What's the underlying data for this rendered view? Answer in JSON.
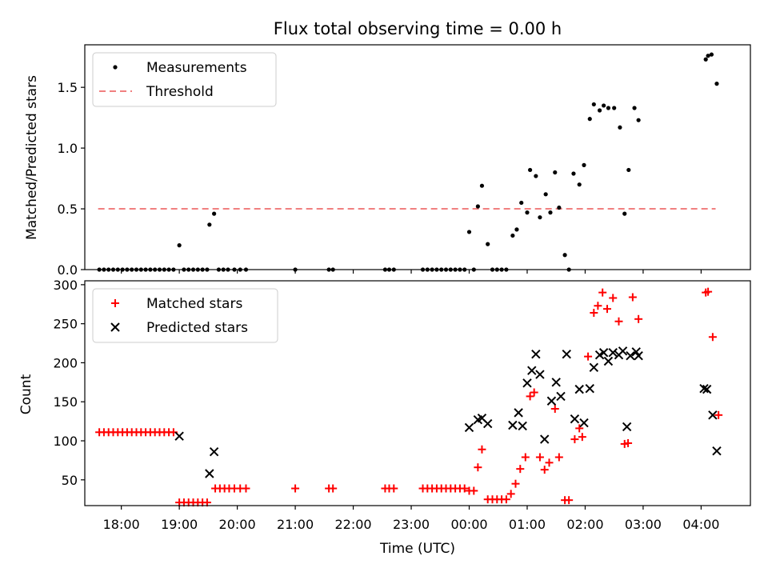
{
  "chart_data": [
    {
      "type": "scatter",
      "title": "Flux total observing time = 0.00 h",
      "xlabel": "",
      "ylabel": "Matched/Predicted stars",
      "xlim": [
        17.37,
        28.85
      ],
      "ylim": [
        0,
        1.85
      ],
      "yticks": [
        0.0,
        0.5,
        1.0,
        1.5
      ],
      "ytick_labels": [
        "0.0",
        "0.5",
        "1.0",
        "1.5"
      ],
      "legend_position": "upper-left",
      "legend": [
        "Measurements",
        "Threshold"
      ],
      "threshold": {
        "name": "Threshold",
        "value": 0.5,
        "x_range": [
          17.6,
          28.25
        ],
        "color": "#f08080",
        "style": "dashed"
      },
      "series": [
        {
          "name": "Measurements",
          "color": "#000000",
          "marker": "dot",
          "points": [
            [
              17.62,
              0
            ],
            [
              17.7,
              0
            ],
            [
              17.78,
              0
            ],
            [
              17.86,
              0
            ],
            [
              17.94,
              0
            ],
            [
              18.02,
              0
            ],
            [
              18.1,
              0
            ],
            [
              18.18,
              0
            ],
            [
              18.26,
              0
            ],
            [
              18.34,
              0
            ],
            [
              18.42,
              0
            ],
            [
              18.5,
              0
            ],
            [
              18.58,
              0
            ],
            [
              18.66,
              0
            ],
            [
              18.74,
              0
            ],
            [
              18.82,
              0
            ],
            [
              18.9,
              0
            ],
            [
              19.0,
              0.2
            ],
            [
              19.08,
              0
            ],
            [
              19.16,
              0
            ],
            [
              19.24,
              0
            ],
            [
              19.32,
              0
            ],
            [
              19.4,
              0
            ],
            [
              19.48,
              0
            ],
            [
              19.52,
              0.37
            ],
            [
              19.6,
              0.46
            ],
            [
              19.68,
              0
            ],
            [
              19.76,
              0
            ],
            [
              19.84,
              0
            ],
            [
              19.95,
              0
            ],
            [
              20.05,
              0
            ],
            [
              20.15,
              0
            ],
            [
              21.0,
              0
            ],
            [
              21.58,
              0
            ],
            [
              21.65,
              0
            ],
            [
              22.55,
              0
            ],
            [
              22.62,
              0
            ],
            [
              22.7,
              0
            ],
            [
              23.2,
              0
            ],
            [
              23.28,
              0
            ],
            [
              23.36,
              0
            ],
            [
              23.44,
              0
            ],
            [
              23.52,
              0
            ],
            [
              23.6,
              0
            ],
            [
              23.68,
              0
            ],
            [
              23.76,
              0
            ],
            [
              23.84,
              0
            ],
            [
              23.92,
              0
            ],
            [
              24.0,
              0.31
            ],
            [
              24.08,
              0
            ],
            [
              24.15,
              0.52
            ],
            [
              24.22,
              0.69
            ],
            [
              24.32,
              0.21
            ],
            [
              24.4,
              0
            ],
            [
              24.48,
              0
            ],
            [
              24.56,
              0
            ],
            [
              24.64,
              0
            ],
            [
              24.75,
              0.28
            ],
            [
              24.82,
              0.33
            ],
            [
              24.9,
              0.55
            ],
            [
              25.0,
              0.47
            ],
            [
              25.05,
              0.82
            ],
            [
              25.15,
              0.77
            ],
            [
              25.22,
              0.43
            ],
            [
              25.32,
              0.62
            ],
            [
              25.4,
              0.47
            ],
            [
              25.48,
              0.8
            ],
            [
              25.55,
              0.51
            ],
            [
              25.65,
              0.12
            ],
            [
              25.72,
              0.0
            ],
            [
              25.8,
              0.79
            ],
            [
              25.9,
              0.7
            ],
            [
              25.98,
              0.86
            ],
            [
              26.08,
              1.24
            ],
            [
              26.15,
              1.36
            ],
            [
              26.25,
              1.31
            ],
            [
              26.32,
              1.35
            ],
            [
              26.4,
              1.33
            ],
            [
              26.5,
              1.33
            ],
            [
              26.6,
              1.17
            ],
            [
              26.68,
              0.46
            ],
            [
              26.75,
              0.82
            ],
            [
              26.85,
              1.33
            ],
            [
              26.92,
              1.23
            ],
            [
              28.08,
              1.73
            ],
            [
              28.12,
              1.76
            ],
            [
              28.18,
              1.77
            ],
            [
              28.27,
              1.53
            ]
          ]
        }
      ]
    },
    {
      "type": "scatter",
      "title": "",
      "xlabel": "Time (UTC)",
      "ylabel": "Count",
      "xlim": [
        17.37,
        28.85
      ],
      "ylim": [
        17,
        305
      ],
      "yticks": [
        50,
        100,
        150,
        200,
        250,
        300
      ],
      "ytick_labels": [
        "50",
        "100",
        "150",
        "200",
        "250",
        "300"
      ],
      "xticks": [
        18,
        19,
        20,
        21,
        22,
        23,
        24,
        25,
        26,
        27,
        28
      ],
      "xtick_labels": [
        "18:00",
        "19:00",
        "20:00",
        "21:00",
        "22:00",
        "23:00",
        "00:00",
        "01:00",
        "02:00",
        "03:00",
        "04:00"
      ],
      "legend_position": "upper-left",
      "legend": [
        "Matched stars",
        "Predicted stars"
      ],
      "series": [
        {
          "name": "Matched stars",
          "color": "#ff0000",
          "marker": "plus",
          "points": [
            [
              17.62,
              111
            ],
            [
              17.7,
              111
            ],
            [
              17.78,
              111
            ],
            [
              17.86,
              111
            ],
            [
              17.94,
              111
            ],
            [
              18.02,
              111
            ],
            [
              18.1,
              111
            ],
            [
              18.18,
              111
            ],
            [
              18.26,
              111
            ],
            [
              18.34,
              111
            ],
            [
              18.42,
              111
            ],
            [
              18.5,
              111
            ],
            [
              18.58,
              111
            ],
            [
              18.66,
              111
            ],
            [
              18.74,
              111
            ],
            [
              18.82,
              111
            ],
            [
              18.9,
              111
            ],
            [
              19.0,
              21
            ],
            [
              19.08,
              21
            ],
            [
              19.16,
              21
            ],
            [
              19.24,
              21
            ],
            [
              19.32,
              21
            ],
            [
              19.4,
              21
            ],
            [
              19.48,
              21
            ],
            [
              19.62,
              39
            ],
            [
              19.7,
              39
            ],
            [
              19.78,
              39
            ],
            [
              19.86,
              39
            ],
            [
              19.95,
              39
            ],
            [
              20.05,
              39
            ],
            [
              20.15,
              39
            ],
            [
              21.0,
              39
            ],
            [
              21.58,
              39
            ],
            [
              21.65,
              39
            ],
            [
              22.55,
              39
            ],
            [
              22.62,
              39
            ],
            [
              22.7,
              39
            ],
            [
              23.2,
              39
            ],
            [
              23.28,
              39
            ],
            [
              23.36,
              39
            ],
            [
              23.44,
              39
            ],
            [
              23.52,
              39
            ],
            [
              23.6,
              39
            ],
            [
              23.68,
              39
            ],
            [
              23.76,
              39
            ],
            [
              23.84,
              39
            ],
            [
              23.92,
              39
            ],
            [
              24.0,
              36
            ],
            [
              24.08,
              36
            ],
            [
              24.15,
              66
            ],
            [
              24.22,
              89
            ],
            [
              24.32,
              25
            ],
            [
              24.4,
              25
            ],
            [
              24.48,
              25
            ],
            [
              24.56,
              25
            ],
            [
              24.64,
              25
            ],
            [
              24.72,
              32
            ],
            [
              24.8,
              45
            ],
            [
              24.88,
              64
            ],
            [
              24.97,
              79
            ],
            [
              25.05,
              157
            ],
            [
              25.12,
              162
            ],
            [
              25.22,
              79
            ],
            [
              25.3,
              63
            ],
            [
              25.38,
              72
            ],
            [
              25.48,
              141
            ],
            [
              25.55,
              79
            ],
            [
              25.65,
              24
            ],
            [
              25.72,
              24
            ],
            [
              25.82,
              102
            ],
            [
              25.9,
              116
            ],
            [
              25.95,
              105
            ],
            [
              26.05,
              208
            ],
            [
              26.15,
              264
            ],
            [
              26.22,
              273
            ],
            [
              26.3,
              290
            ],
            [
              26.38,
              269
            ],
            [
              26.48,
              283
            ],
            [
              26.58,
              253
            ],
            [
              26.68,
              96
            ],
            [
              26.74,
              97
            ],
            [
              26.82,
              284
            ],
            [
              26.92,
              256
            ],
            [
              28.08,
              290
            ],
            [
              28.12,
              291
            ],
            [
              28.2,
              233
            ],
            [
              28.3,
              133
            ]
          ]
        },
        {
          "name": "Predicted stars",
          "color": "#000000",
          "marker": "x",
          "points": [
            [
              19.0,
              106
            ],
            [
              19.52,
              58
            ],
            [
              19.6,
              86
            ],
            [
              24.0,
              117
            ],
            [
              24.15,
              127
            ],
            [
              24.22,
              129
            ],
            [
              24.32,
              122
            ],
            [
              24.75,
              120
            ],
            [
              24.85,
              136
            ],
            [
              24.92,
              119
            ],
            [
              25.0,
              174
            ],
            [
              25.08,
              190
            ],
            [
              25.15,
              211
            ],
            [
              25.22,
              185
            ],
            [
              25.3,
              102
            ],
            [
              25.42,
              151
            ],
            [
              25.5,
              175
            ],
            [
              25.58,
              157
            ],
            [
              25.68,
              211
            ],
            [
              25.82,
              128
            ],
            [
              25.9,
              166
            ],
            [
              25.98,
              123
            ],
            [
              26.08,
              167
            ],
            [
              26.15,
              194
            ],
            [
              26.25,
              210
            ],
            [
              26.32,
              213
            ],
            [
              26.4,
              202
            ],
            [
              26.48,
              213
            ],
            [
              26.58,
              210
            ],
            [
              26.65,
              215
            ],
            [
              26.72,
              118
            ],
            [
              26.78,
              209
            ],
            [
              26.88,
              214
            ],
            [
              26.92,
              209
            ],
            [
              28.05,
              167
            ],
            [
              28.1,
              166
            ],
            [
              28.2,
              133
            ],
            [
              28.27,
              87
            ]
          ]
        }
      ]
    }
  ]
}
